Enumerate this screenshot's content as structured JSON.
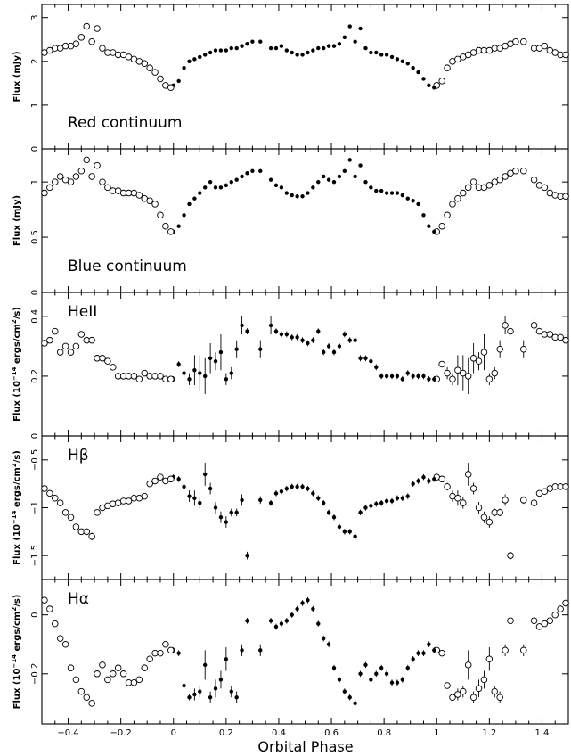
{
  "figure": {
    "xlabel": "Orbital Phase",
    "xlim": [
      -0.5,
      1.5
    ],
    "xticks": [
      -0.4,
      -0.2,
      0,
      0.2,
      0.4,
      0.6,
      0.8,
      1,
      1.2,
      1.4
    ],
    "xtick_labels": [
      "−0.4",
      "−0.2",
      "0",
      "0.2",
      "0.4",
      "0.6",
      "0.8",
      "1",
      "1.2",
      "1.4"
    ],
    "marker_rule": "filled for phase 0–1, open for repeated phases"
  },
  "chart_data": [
    {
      "type": "scatter",
      "label": "Red continuum",
      "ylabel": "Flux (mJy)",
      "ylim": [
        0,
        3.3
      ],
      "yticks": [
        0,
        1,
        2,
        3
      ],
      "ytick_labels": [
        "0",
        "1",
        "2",
        "3"
      ],
      "x": [
        0.0,
        0.02,
        0.04,
        0.06,
        0.08,
        0.1,
        0.12,
        0.14,
        0.16,
        0.18,
        0.2,
        0.22,
        0.24,
        0.26,
        0.28,
        0.3,
        0.33,
        0.37,
        0.39,
        0.41,
        0.43,
        0.45,
        0.47,
        0.49,
        0.51,
        0.53,
        0.55,
        0.57,
        0.59,
        0.61,
        0.63,
        0.65,
        0.67,
        0.69,
        0.71,
        0.73,
        0.75,
        0.77,
        0.79,
        0.81,
        0.83,
        0.85,
        0.87,
        0.89,
        0.91,
        0.93,
        0.95,
        0.97,
        0.99
      ],
      "y": [
        1.45,
        1.55,
        1.85,
        2.0,
        2.05,
        2.1,
        2.15,
        2.2,
        2.25,
        2.25,
        2.25,
        2.3,
        2.3,
        2.35,
        2.4,
        2.45,
        2.45,
        2.3,
        2.3,
        2.35,
        2.25,
        2.2,
        2.15,
        2.15,
        2.2,
        2.25,
        2.3,
        2.3,
        2.35,
        2.35,
        2.4,
        2.55,
        2.8,
        2.45,
        2.75,
        2.3,
        2.2,
        2.2,
        2.15,
        2.15,
        2.1,
        2.05,
        2.0,
        1.95,
        1.85,
        1.75,
        1.6,
        1.45,
        1.4
      ]
    },
    {
      "type": "scatter",
      "label": "Blue continuum",
      "ylabel": "Flux (mJy)",
      "ylim": [
        0,
        1.3
      ],
      "yticks": [
        0,
        0.5,
        1
      ],
      "ytick_labels": [
        "0",
        "0.5",
        "1"
      ],
      "x": [
        0.0,
        0.02,
        0.04,
        0.06,
        0.08,
        0.1,
        0.12,
        0.14,
        0.16,
        0.18,
        0.2,
        0.22,
        0.24,
        0.26,
        0.28,
        0.3,
        0.33,
        0.37,
        0.39,
        0.41,
        0.43,
        0.45,
        0.47,
        0.49,
        0.51,
        0.53,
        0.55,
        0.57,
        0.59,
        0.61,
        0.63,
        0.65,
        0.67,
        0.69,
        0.71,
        0.73,
        0.75,
        0.77,
        0.79,
        0.81,
        0.83,
        0.85,
        0.87,
        0.89,
        0.91,
        0.93,
        0.95,
        0.97,
        0.99
      ],
      "y": [
        0.55,
        0.6,
        0.7,
        0.8,
        0.85,
        0.9,
        0.95,
        1.0,
        0.95,
        0.95,
        0.97,
        1.0,
        1.02,
        1.05,
        1.08,
        1.1,
        1.1,
        1.02,
        0.97,
        0.95,
        0.9,
        0.88,
        0.87,
        0.87,
        0.9,
        0.95,
        1.0,
        1.05,
        1.02,
        1.0,
        1.05,
        1.1,
        1.2,
        1.05,
        1.15,
        1.0,
        0.95,
        0.92,
        0.92,
        0.9,
        0.9,
        0.9,
        0.88,
        0.85,
        0.83,
        0.8,
        0.7,
        0.6,
        0.55
      ]
    },
    {
      "type": "scatter",
      "label": "HeII",
      "ylabel": "Flux (10",
      "ylabel_exponent": "−14",
      "ylabel_unit": " ergs/cm",
      "ylabel_unit_exponent": "2",
      "ylabel_tail": "/s)",
      "ylim": [
        0,
        0.48
      ],
      "yticks": [
        0,
        0.2,
        0.4
      ],
      "ytick_labels": [
        "0",
        "0.2",
        "0.4"
      ],
      "x": [
        0.0,
        0.02,
        0.04,
        0.06,
        0.08,
        0.1,
        0.12,
        0.14,
        0.16,
        0.18,
        0.2,
        0.22,
        0.24,
        0.26,
        0.28,
        0.33,
        0.37,
        0.39,
        0.41,
        0.43,
        0.45,
        0.47,
        0.49,
        0.51,
        0.53,
        0.55,
        0.57,
        0.59,
        0.61,
        0.63,
        0.65,
        0.67,
        0.69,
        0.71,
        0.73,
        0.75,
        0.77,
        0.79,
        0.81,
        0.83,
        0.85,
        0.87,
        0.89,
        0.91,
        0.93,
        0.95,
        0.97,
        0.99
      ],
      "y": [
        0.19,
        0.24,
        0.21,
        0.19,
        0.22,
        0.21,
        0.2,
        0.26,
        0.25,
        0.28,
        0.19,
        0.21,
        0.29,
        0.37,
        0.35,
        0.29,
        0.37,
        0.35,
        0.34,
        0.34,
        0.33,
        0.33,
        0.32,
        0.31,
        0.32,
        0.35,
        0.28,
        0.3,
        0.28,
        0.3,
        0.34,
        0.32,
        0.32,
        0.26,
        0.26,
        0.25,
        0.23,
        0.2,
        0.2,
        0.2,
        0.2,
        0.19,
        0.21,
        0.2,
        0.2,
        0.2,
        0.19,
        0.19
      ],
      "yerr": [
        0.01,
        0.01,
        0.02,
        0.02,
        0.05,
        0.06,
        0.06,
        0.05,
        0.03,
        0.06,
        0.02,
        0.02,
        0.03,
        0.03,
        0.01,
        0.03,
        0.03,
        0.01,
        0.01,
        0.01,
        0.01,
        0.01,
        0.01,
        0.01,
        0.01,
        0.01,
        0.01,
        0.01,
        0.01,
        0.01,
        0.01,
        0.01,
        0.01,
        0.01,
        0.01,
        0.01,
        0.01,
        0.01,
        0.01,
        0.01,
        0.01,
        0.01,
        0.01,
        0.01,
        0.01,
        0.01,
        0.01,
        0.01
      ]
    },
    {
      "type": "scatter",
      "label": "Hβ",
      "ylabel": "Flux (10",
      "ylabel_exponent": "−14",
      "ylabel_unit": " ergs/cm",
      "ylabel_unit_exponent": "2",
      "ylabel_tail": "/s)",
      "ylim": [
        -1.75,
        -0.25
      ],
      "yticks": [
        -1.5,
        -1,
        -0.5
      ],
      "ytick_labels": [
        "−1.5",
        "−1",
        "−0.5"
      ],
      "x": [
        0.0,
        0.02,
        0.04,
        0.06,
        0.08,
        0.1,
        0.12,
        0.14,
        0.16,
        0.18,
        0.2,
        0.22,
        0.24,
        0.26,
        0.28,
        0.33,
        0.37,
        0.39,
        0.41,
        0.43,
        0.45,
        0.47,
        0.49,
        0.51,
        0.53,
        0.55,
        0.57,
        0.59,
        0.61,
        0.63,
        0.65,
        0.67,
        0.69,
        0.71,
        0.73,
        0.75,
        0.77,
        0.79,
        0.81,
        0.83,
        0.85,
        0.87,
        0.89,
        0.91,
        0.93,
        0.95,
        0.97,
        0.99
      ],
      "y": [
        -0.68,
        -0.7,
        -0.78,
        -0.88,
        -0.9,
        -0.95,
        -0.65,
        -0.8,
        -1.0,
        -1.1,
        -1.15,
        -1.05,
        -1.05,
        -0.92,
        -1.5,
        -0.92,
        -0.95,
        -0.85,
        -0.83,
        -0.8,
        -0.78,
        -0.78,
        -0.78,
        -0.8,
        -0.85,
        -0.9,
        -0.95,
        -1.05,
        -1.1,
        -1.2,
        -1.25,
        -1.25,
        -1.3,
        -1.05,
        -1.0,
        -0.98,
        -0.96,
        -0.95,
        -0.93,
        -0.93,
        -0.9,
        -0.9,
        -0.88,
        -0.75,
        -0.72,
        -0.68,
        -0.72,
        -0.7
      ],
      "yerr": [
        0.03,
        0.03,
        0.04,
        0.06,
        0.08,
        0.06,
        0.12,
        0.06,
        0.06,
        0.06,
        0.06,
        0.04,
        0.04,
        0.06,
        0.04,
        0.04,
        0.03,
        0.03,
        0.03,
        0.03,
        0.03,
        0.03,
        0.03,
        0.03,
        0.03,
        0.03,
        0.03,
        0.03,
        0.03,
        0.03,
        0.03,
        0.03,
        0.04,
        0.03,
        0.03,
        0.03,
        0.03,
        0.03,
        0.03,
        0.03,
        0.03,
        0.03,
        0.03,
        0.03,
        0.03,
        0.03,
        0.03,
        0.03
      ]
    },
    {
      "type": "scatter",
      "label": "Hα",
      "ylabel": "Flux (10",
      "ylabel_exponent": "−14",
      "ylabel_unit": " ergs/cm",
      "ylabel_unit_exponent": "2",
      "ylabel_tail": "/s)",
      "ylim": [
        -0.37,
        0.12
      ],
      "yticks": [
        -0.2,
        0
      ],
      "ytick_labels": [
        "−0.2",
        "0"
      ],
      "x": [
        0.0,
        0.02,
        0.04,
        0.06,
        0.08,
        0.1,
        0.12,
        0.14,
        0.16,
        0.18,
        0.2,
        0.22,
        0.24,
        0.26,
        0.28,
        0.33,
        0.37,
        0.39,
        0.41,
        0.43,
        0.45,
        0.47,
        0.49,
        0.51,
        0.53,
        0.55,
        0.57,
        0.59,
        0.61,
        0.63,
        0.65,
        0.67,
        0.69,
        0.71,
        0.73,
        0.75,
        0.77,
        0.79,
        0.81,
        0.83,
        0.85,
        0.87,
        0.89,
        0.91,
        0.93,
        0.95,
        0.97,
        0.99
      ],
      "y": [
        -0.12,
        -0.13,
        -0.24,
        -0.28,
        -0.27,
        -0.26,
        -0.17,
        -0.28,
        -0.25,
        -0.22,
        -0.15,
        -0.26,
        -0.28,
        -0.12,
        -0.02,
        -0.12,
        -0.02,
        -0.04,
        -0.03,
        -0.02,
        0.0,
        0.02,
        0.04,
        0.05,
        0.02,
        -0.03,
        -0.08,
        -0.1,
        -0.18,
        -0.22,
        -0.26,
        -0.28,
        -0.3,
        -0.2,
        -0.17,
        -0.22,
        -0.2,
        -0.18,
        -0.2,
        -0.23,
        -0.23,
        -0.22,
        -0.18,
        -0.15,
        -0.13,
        -0.13,
        -0.1,
        -0.12
      ],
      "yerr": [
        0.01,
        0.01,
        0.01,
        0.01,
        0.02,
        0.02,
        0.05,
        0.02,
        0.03,
        0.03,
        0.04,
        0.02,
        0.02,
        0.02,
        0.01,
        0.02,
        0.01,
        0.01,
        0.01,
        0.01,
        0.01,
        0.01,
        0.01,
        0.01,
        0.01,
        0.01,
        0.01,
        0.01,
        0.01,
        0.01,
        0.01,
        0.01,
        0.01,
        0.01,
        0.01,
        0.01,
        0.01,
        0.01,
        0.01,
        0.01,
        0.01,
        0.01,
        0.01,
        0.01,
        0.01,
        0.01,
        0.01,
        0.01
      ]
    }
  ]
}
